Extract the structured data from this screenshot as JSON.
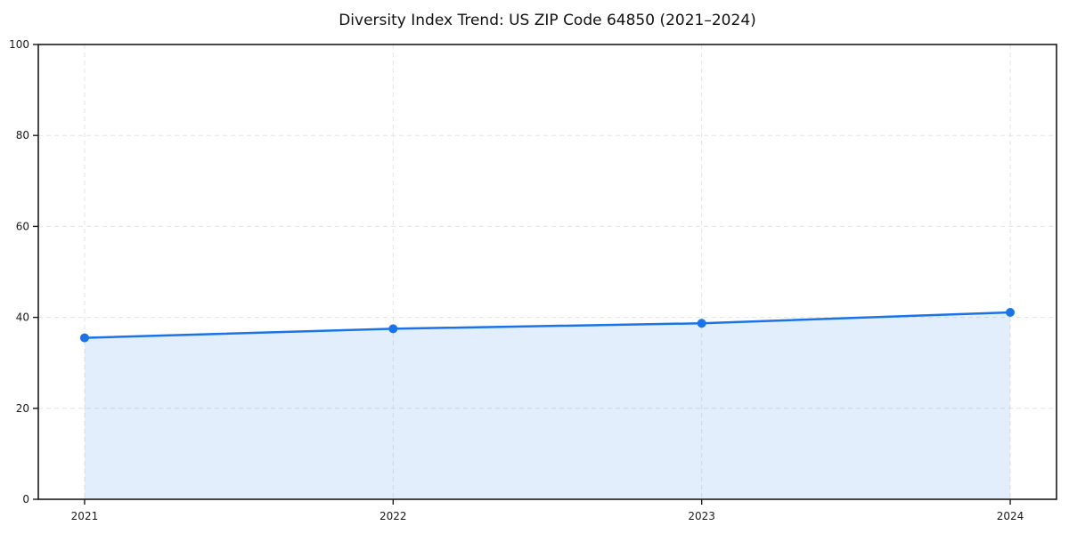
{
  "chart_data": {
    "type": "line",
    "title": "Diversity Index Trend: US ZIP Code 64850 (2021–2024)",
    "x": [
      2021,
      2022,
      2023,
      2024
    ],
    "xtick_labels": [
      "2021",
      "2022",
      "2023",
      "2024"
    ],
    "series": [
      {
        "name": "Diversity Index",
        "values": [
          35.5,
          37.5,
          38.7,
          41.1
        ]
      }
    ],
    "xlabel": "",
    "ylabel": "",
    "ylim": [
      0,
      100
    ],
    "yticks": [
      0,
      20,
      40,
      60,
      80,
      100
    ],
    "grid": "dashed-both-axes",
    "legend": "none",
    "marker": "circle",
    "area_fill": true,
    "colors": {
      "line": "#1a73e8",
      "marker": "#1a73e8",
      "fill": "rgba(26,115,232,0.12)",
      "grid": "#e4e4e4",
      "spine": "#1a1a1a",
      "tick_label": "#1a1a1a",
      "background": "#ffffff"
    }
  }
}
